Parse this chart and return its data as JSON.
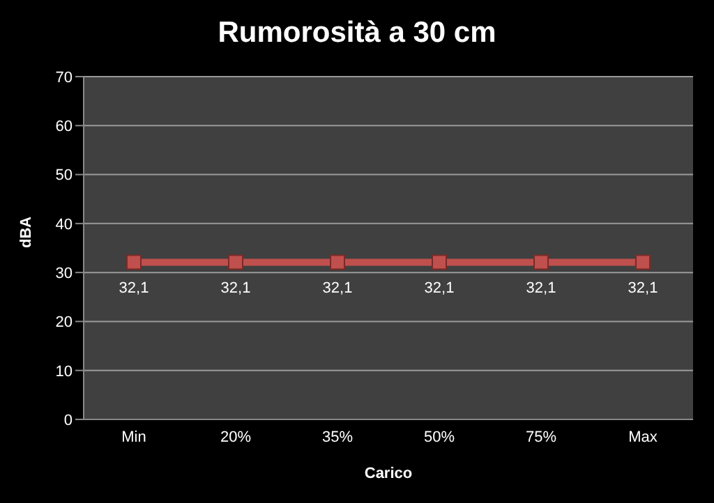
{
  "chart_data": {
    "type": "line",
    "title": "Rumorosità a 30 cm",
    "xlabel": "Carico",
    "ylabel": "dBA",
    "categories": [
      "Min",
      "20%",
      "35%",
      "50%",
      "75%",
      "Max"
    ],
    "series": [
      {
        "color": "#c0504d",
        "values": [
          32.1,
          32.1,
          32.1,
          32.1,
          32.1,
          32.1
        ],
        "value_labels": [
          "32,1",
          "32,1",
          "32,1",
          "32,1",
          "32,1",
          "32,1"
        ]
      }
    ],
    "ylim": [
      0,
      70
    ],
    "yticks": [
      0,
      10,
      20,
      30,
      40,
      50,
      60,
      70
    ],
    "grid": "y",
    "legend": false,
    "marker": "square",
    "line_style": "solid"
  }
}
